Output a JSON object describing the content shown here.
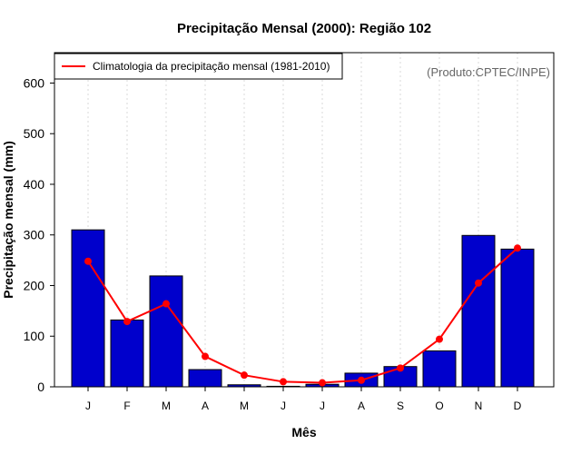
{
  "colors": {
    "bar": "#0000cc",
    "line": "#ff0000",
    "grid": "#d9d9d9",
    "credit": "#666666"
  },
  "chart_data": {
    "type": "bar",
    "title": "Precipitação Mensal (2000): Região 102",
    "xlabel": "Mês",
    "ylabel": "Precipitação mensal (mm)",
    "ylim": [
      0,
      660
    ],
    "yticks": [
      0,
      100,
      200,
      300,
      400,
      500,
      600
    ],
    "categories": [
      "J",
      "F",
      "M",
      "A",
      "M",
      "J",
      "J",
      "A",
      "S",
      "O",
      "N",
      "D"
    ],
    "series": [
      {
        "name": "Precipitação mensal (2000)",
        "kind": "bar",
        "values": [
          310,
          132,
          219,
          34,
          4,
          1,
          5,
          27,
          40,
          71,
          299,
          272
        ]
      },
      {
        "name": "Climatologia da precipitação mensal (1981-2010)",
        "kind": "line",
        "values": [
          248,
          129,
          164,
          60,
          23,
          10,
          8,
          13,
          37,
          94,
          205,
          274
        ]
      }
    ],
    "legend": {
      "position": "top-left",
      "entries": [
        "Climatologia da precipitação mensal (1981-2010)"
      ]
    },
    "annotation": "(Produto:CPTEC/INPE)",
    "grid": "vertical dotted"
  }
}
